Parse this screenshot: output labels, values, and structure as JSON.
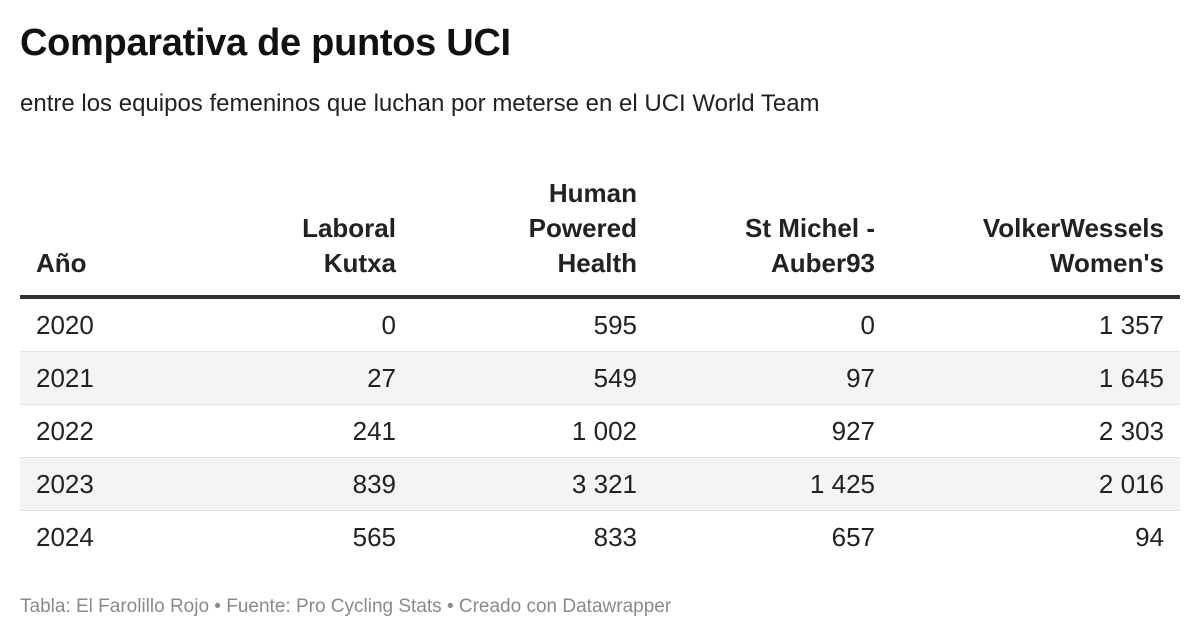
{
  "title": "Comparativa de puntos UCI",
  "subtitle": "entre los equipos femeninos que luchan por meterse en el UCI World Team",
  "footer": "Tabla: El Farolillo Rojo • Fuente: Pro Cycling Stats • Creado con Datawrapper",
  "chart_data": {
    "type": "table",
    "title": "Comparativa de puntos UCI",
    "subtitle": "entre los equipos femeninos que luchan por meterse en el UCI World Team",
    "columns": [
      "Año",
      "Laboral\nKutxa",
      "Human\nPowered\nHealth",
      "St Michel -\nAuber93",
      "VolkerWessels\nWomen's"
    ],
    "rows": [
      [
        "2020",
        "0",
        "595",
        "0",
        "1 357"
      ],
      [
        "2021",
        "27",
        "549",
        "97",
        "1 645"
      ],
      [
        "2022",
        "241",
        "1 002",
        "927",
        "2 303"
      ],
      [
        "2023",
        "839",
        "3 321",
        "1 425",
        "2 016"
      ],
      [
        "2024",
        "565",
        "833",
        "657",
        "94"
      ]
    ]
  }
}
